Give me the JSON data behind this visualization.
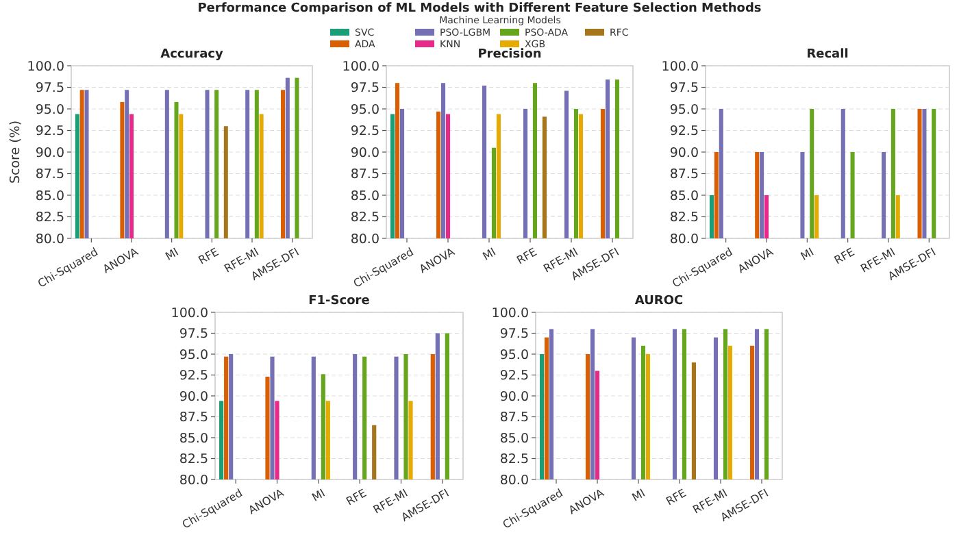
{
  "chart_data": [
    {
      "type": "bar",
      "title": "Accuracy",
      "ylabel": "Score (%)",
      "annotations": [
        "Performance Comparison of ML Models with Different Feature Selection Methods"
      ],
      "legend": "top",
      "legend_title": "Machine Learning Models",
      "grid": "y",
      "categories": [
        "Chi-Squared",
        "ANOVA",
        "MI",
        "RFE",
        "RFE-MI",
        "AMSE-DFI"
      ],
      "ylim": [
        80,
        100
      ],
      "yticks": [
        {
          "value": 80,
          "label": "80.0"
        },
        {
          "value": 82.5,
          "label": "82.5"
        },
        {
          "value": 85,
          "label": "85.0"
        },
        {
          "value": 87.5,
          "label": "87.5"
        },
        {
          "value": 90,
          "label": "90.0"
        },
        {
          "value": 92.5,
          "label": "92.5"
        },
        {
          "value": 95,
          "label": "95.0"
        },
        {
          "value": 97.5,
          "label": "97.5"
        },
        {
          "value": 100,
          "label": "100.0"
        }
      ],
      "series": [
        {
          "name": "SVC",
          "color": "#1b9e77",
          "values": [
            94.4,
            null,
            null,
            null,
            null,
            null
          ]
        },
        {
          "name": "ADA",
          "color": "#d95f02",
          "values": [
            97.2,
            95.8,
            null,
            null,
            null,
            97.2
          ]
        },
        {
          "name": "PSO-LGBM",
          "color": "#7570b3",
          "values": [
            97.2,
            97.2,
            97.2,
            97.2,
            97.2,
            98.6
          ]
        },
        {
          "name": "KNN",
          "color": "#e7298a",
          "values": [
            null,
            94.4,
            null,
            null,
            null,
            null
          ]
        },
        {
          "name": "PSO-ADA",
          "color": "#66a61e",
          "values": [
            null,
            null,
            95.8,
            97.2,
            97.2,
            98.6
          ]
        },
        {
          "name": "XGB",
          "color": "#e6ab02",
          "values": [
            null,
            null,
            94.4,
            null,
            94.4,
            null
          ]
        },
        {
          "name": "RFC",
          "color": "#a6761d",
          "values": [
            null,
            null,
            null,
            93.0,
            null,
            null
          ]
        }
      ]
    },
    {
      "type": "bar",
      "title": "Precision",
      "grid": "y",
      "categories": [
        "Chi-Squared",
        "ANOVA",
        "MI",
        "RFE",
        "RFE-MI",
        "AMSE-DFI"
      ],
      "ylim": [
        80,
        100
      ],
      "yticks": [
        {
          "value": 80,
          "label": "80.0"
        },
        {
          "value": 82.5,
          "label": "82.5"
        },
        {
          "value": 85,
          "label": "85.0"
        },
        {
          "value": 87.5,
          "label": "87.5"
        },
        {
          "value": 90,
          "label": "90.0"
        },
        {
          "value": 92.5,
          "label": "92.5"
        },
        {
          "value": 95,
          "label": "95.0"
        },
        {
          "value": 97.5,
          "label": "97.5"
        },
        {
          "value": 100,
          "label": "100.0"
        }
      ],
      "series": [
        {
          "color": "#1b9e77",
          "values": [
            94.4,
            null,
            null,
            null,
            null,
            null
          ]
        },
        {
          "color": "#d95f02",
          "values": [
            98.0,
            94.7,
            null,
            null,
            null,
            95.0
          ]
        },
        {
          "color": "#7570b3",
          "values": [
            95.0,
            98.0,
            97.7,
            95.0,
            97.1,
            98.4
          ]
        },
        {
          "color": "#e7298a",
          "values": [
            null,
            94.4,
            null,
            null,
            null,
            null
          ]
        },
        {
          "color": "#66a61e",
          "values": [
            null,
            null,
            90.5,
            98.0,
            95.0,
            98.4
          ]
        },
        {
          "color": "#e6ab02",
          "values": [
            null,
            null,
            94.4,
            null,
            94.4,
            null
          ]
        },
        {
          "color": "#a6761d",
          "values": [
            null,
            null,
            null,
            94.1,
            null,
            null
          ]
        }
      ]
    },
    {
      "type": "bar",
      "title": "Recall",
      "grid": "y",
      "categories": [
        "Chi-Squared",
        "ANOVA",
        "MI",
        "RFE",
        "RFE-MI",
        "AMSE-DFI"
      ],
      "ylim": [
        80,
        100
      ],
      "yticks": [
        {
          "value": 80,
          "label": "80.0"
        },
        {
          "value": 82.5,
          "label": "82.5"
        },
        {
          "value": 85,
          "label": "85.0"
        },
        {
          "value": 87.5,
          "label": "87.5"
        },
        {
          "value": 90,
          "label": "90.0"
        },
        {
          "value": 92.5,
          "label": "92.5"
        },
        {
          "value": 95,
          "label": "95.0"
        },
        {
          "value": 97.5,
          "label": "97.5"
        },
        {
          "value": 100,
          "label": "100.0"
        }
      ],
      "series": [
        {
          "color": "#1b9e77",
          "values": [
            85,
            null,
            null,
            null,
            null,
            null
          ]
        },
        {
          "color": "#d95f02",
          "values": [
            90,
            90,
            null,
            null,
            null,
            95
          ]
        },
        {
          "color": "#7570b3",
          "values": [
            95,
            90,
            90,
            95,
            90,
            95
          ]
        },
        {
          "color": "#e7298a",
          "values": [
            null,
            85,
            null,
            null,
            null,
            null
          ]
        },
        {
          "color": "#66a61e",
          "values": [
            null,
            null,
            95,
            90,
            95,
            95
          ]
        },
        {
          "color": "#e6ab02",
          "values": [
            null,
            null,
            85,
            null,
            85,
            null
          ]
        }
      ]
    },
    {
      "type": "bar",
      "title": "F1-Score",
      "grid": "y",
      "categories": [
        "Chi-Squared",
        "ANOVA",
        "MI",
        "RFE",
        "RFE-MI",
        "AMSE-DFI"
      ],
      "ylim": [
        80,
        100
      ],
      "yticks": [
        {
          "value": 80,
          "label": "80.0"
        },
        {
          "value": 82.5,
          "label": "82.5"
        },
        {
          "value": 85,
          "label": "85.0"
        },
        {
          "value": 87.5,
          "label": "87.5"
        },
        {
          "value": 90,
          "label": "90.0"
        },
        {
          "value": 92.5,
          "label": "92.5"
        },
        {
          "value": 95,
          "label": "95.0"
        },
        {
          "value": 97.5,
          "label": "97.5"
        },
        {
          "value": 100,
          "label": "100.0"
        }
      ],
      "series": [
        {
          "color": "#1b9e77",
          "values": [
            89.4,
            null,
            null,
            null,
            null,
            null
          ]
        },
        {
          "color": "#d95f02",
          "values": [
            94.7,
            92.3,
            null,
            null,
            null,
            95.0
          ]
        },
        {
          "color": "#7570b3",
          "values": [
            95.0,
            94.7,
            94.7,
            95.0,
            94.7,
            97.5
          ]
        },
        {
          "color": "#e7298a",
          "values": [
            null,
            89.4,
            null,
            null,
            null,
            null
          ]
        },
        {
          "color": "#66a61e",
          "values": [
            null,
            null,
            92.6,
            94.7,
            95.0,
            97.5
          ]
        },
        {
          "color": "#e6ab02",
          "values": [
            null,
            null,
            89.4,
            null,
            89.4,
            null
          ]
        },
        {
          "color": "#a6761d",
          "values": [
            null,
            null,
            null,
            86.5,
            null,
            null
          ]
        }
      ]
    },
    {
      "type": "bar",
      "title": "AUROC",
      "grid": "y",
      "categories": [
        "Chi-Squared",
        "ANOVA",
        "MI",
        "RFE",
        "RFE-MI",
        "AMSE-DFI"
      ],
      "ylim": [
        80,
        100
      ],
      "yticks": [
        {
          "value": 80,
          "label": "80.0"
        },
        {
          "value": 82.5,
          "label": "82.5"
        },
        {
          "value": 85,
          "label": "85.0"
        },
        {
          "value": 87.5,
          "label": "87.5"
        },
        {
          "value": 90,
          "label": "90.0"
        },
        {
          "value": 92.5,
          "label": "92.5"
        },
        {
          "value": 95,
          "label": "95.0"
        },
        {
          "value": 97.5,
          "label": "97.5"
        },
        {
          "value": 100,
          "label": "100.0"
        }
      ],
      "series": [
        {
          "color": "#1b9e77",
          "values": [
            95,
            null,
            null,
            null,
            null,
            null
          ]
        },
        {
          "color": "#d95f02",
          "values": [
            97,
            95,
            null,
            null,
            null,
            96
          ]
        },
        {
          "color": "#7570b3",
          "values": [
            98,
            98,
            97,
            98,
            97,
            98
          ]
        },
        {
          "color": "#e7298a",
          "values": [
            null,
            93,
            null,
            null,
            null,
            null
          ]
        },
        {
          "color": "#66a61e",
          "values": [
            null,
            null,
            96,
            98,
            98,
            98
          ]
        },
        {
          "color": "#e6ab02",
          "values": [
            null,
            null,
            95,
            null,
            96,
            null
          ]
        },
        {
          "color": "#a6761d",
          "values": [
            null,
            null,
            null,
            94,
            null,
            null
          ]
        }
      ]
    }
  ]
}
